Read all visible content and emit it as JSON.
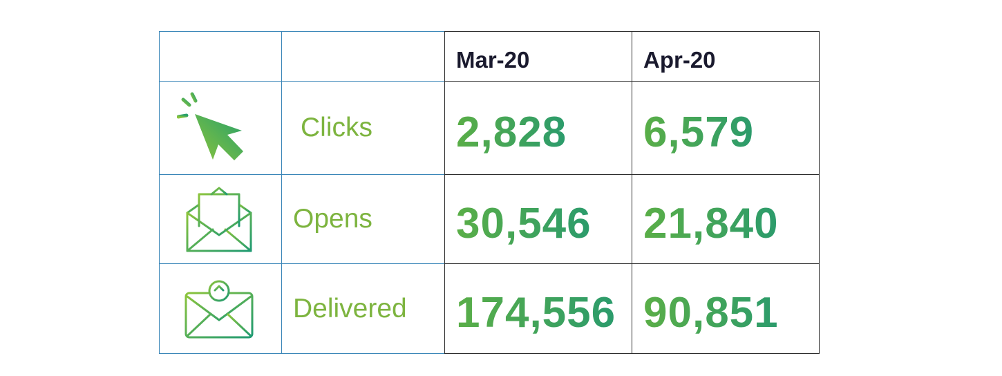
{
  "columns": [
    "Mar-20",
    "Apr-20"
  ],
  "rows": [
    {
      "icon": "cursor-click-icon",
      "label": "Clicks",
      "values": [
        "2,828",
        "6,579"
      ]
    },
    {
      "icon": "open-envelope-icon",
      "label": "Opens",
      "values": [
        "30,546",
        "21,840"
      ]
    },
    {
      "icon": "envelope-upload-icon",
      "label": "Delivered",
      "values": [
        "174,556",
        "90,851"
      ]
    }
  ],
  "colors": {
    "label_green": "#7db43f",
    "value_gradient_start": "#5aae47",
    "value_gradient_end": "#2b9b6c",
    "header_text": "#1a1a2e",
    "left_border": "#3a86b8",
    "right_border": "#2c2c2c"
  }
}
